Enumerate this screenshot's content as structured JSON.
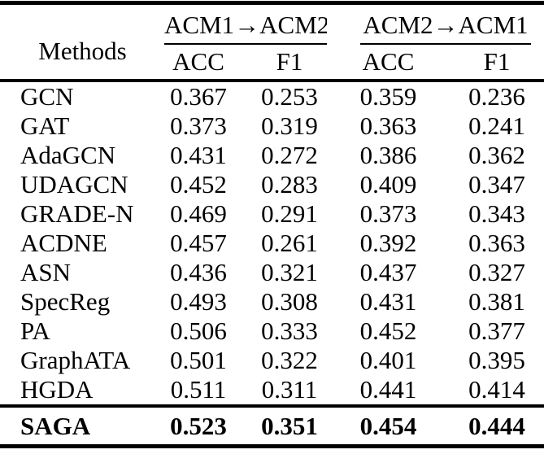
{
  "table": {
    "methods_header": "Methods",
    "groups": [
      {
        "label": "ACM1→ACM2",
        "subcolumns": [
          "ACC",
          "F1"
        ]
      },
      {
        "label": "ACM2→ACM1",
        "subcolumns": [
          "ACC",
          "F1"
        ]
      }
    ],
    "subheaders": [
      "ACC",
      "F1",
      "ACC",
      "F1"
    ],
    "rows": [
      {
        "method": "GCN",
        "values": [
          "0.367",
          "0.253",
          "0.359",
          "0.236"
        ]
      },
      {
        "method": "GAT",
        "values": [
          "0.373",
          "0.319",
          "0.363",
          "0.241"
        ]
      },
      {
        "method": "AdaGCN",
        "values": [
          "0.431",
          "0.272",
          "0.386",
          "0.362"
        ]
      },
      {
        "method": "UDAGCN",
        "values": [
          "0.452",
          "0.283",
          "0.409",
          "0.347"
        ]
      },
      {
        "method": "GRADE-N",
        "values": [
          "0.469",
          "0.291",
          "0.373",
          "0.343"
        ]
      },
      {
        "method": "ACDNE",
        "values": [
          "0.457",
          "0.261",
          "0.392",
          "0.363"
        ]
      },
      {
        "method": "ASN",
        "values": [
          "0.436",
          "0.321",
          "0.437",
          "0.327"
        ]
      },
      {
        "method": "SpecReg",
        "values": [
          "0.493",
          "0.308",
          "0.431",
          "0.381"
        ]
      },
      {
        "method": "PA",
        "values": [
          "0.506",
          "0.333",
          "0.452",
          "0.377"
        ]
      },
      {
        "method": "GraphATA",
        "values": [
          "0.501",
          "0.322",
          "0.401",
          "0.395"
        ]
      },
      {
        "method": "HGDA",
        "values": [
          "0.511",
          "0.311",
          "0.441",
          "0.414"
        ]
      }
    ],
    "final_row": {
      "method": "SAGA",
      "values": [
        "0.523",
        "0.351",
        "0.454",
        "0.444"
      ],
      "bold": true
    },
    "text_color": "#000000",
    "background_color": "#ffffff"
  }
}
